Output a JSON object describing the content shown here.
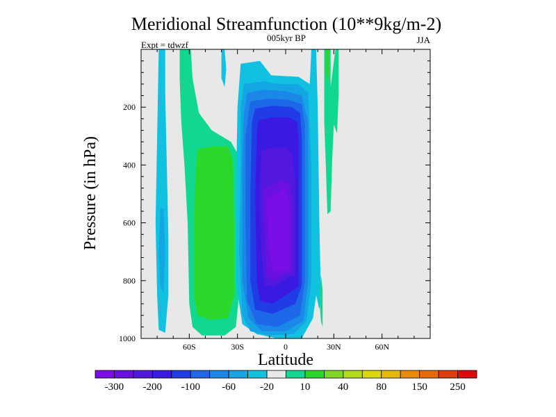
{
  "chart_data": {
    "type": "heatmap",
    "title": "Meridional Streamfunction (10**9kg/m-2)",
    "subtitle_center": "005kyr BP",
    "subtitle_left": "Expt = tdwzf",
    "subtitle_right": "JJA",
    "xlabel": "Latitude",
    "ylabel": "Pressure (in hPa)",
    "xlim": [
      -90,
      90
    ],
    "ylim": [
      1000,
      0
    ],
    "x_ticks": [
      {
        "value": -60,
        "label": "60S"
      },
      {
        "value": -30,
        "label": "30S"
      },
      {
        "value": 0,
        "label": "0"
      },
      {
        "value": 30,
        "label": "30N"
      },
      {
        "value": 60,
        "label": "60N"
      }
    ],
    "y_ticks": [
      {
        "value": 200,
        "label": "200"
      },
      {
        "value": 400,
        "label": "400"
      },
      {
        "value": 600,
        "label": "600"
      },
      {
        "value": 800,
        "label": "800"
      },
      {
        "value": 1000,
        "label": "1000"
      }
    ],
    "background_color": "#e8e8e8",
    "colorbar": {
      "labels": [
        "-300",
        "-200",
        "-100",
        "-60",
        "-20",
        "10",
        "40",
        "80",
        "150",
        "250"
      ],
      "colors": [
        "#7b0ee8",
        "#6a10e0",
        "#5218e0",
        "#3a1ae0",
        "#1f3ce6",
        "#1d68e8",
        "#1b88e8",
        "#14a6e4",
        "#11c2e0",
        "#e8e8e8",
        "#10d890",
        "#2ad82a",
        "#7fd820",
        "#b4dc18",
        "#dcd808",
        "#e8b806",
        "#e88c06",
        "#e86a06",
        "#e03c0e",
        "#e00a0a"
      ]
    },
    "regions": [
      {
        "color": "#11c2e0",
        "points": [
          [
            -79,
            0
          ],
          [
            -75,
            0
          ],
          [
            -75,
            150
          ],
          [
            -74,
            400
          ],
          [
            -73,
            650
          ],
          [
            -73,
            850
          ],
          [
            -75,
            980
          ],
          [
            -79,
            970
          ],
          [
            -80,
            850
          ],
          [
            -81,
            600
          ],
          [
            -80,
            300
          ]
        ]
      },
      {
        "color": "#14a6e4",
        "points": [
          [
            -78,
            550
          ],
          [
            -76,
            550
          ],
          [
            -75,
            700
          ],
          [
            -76,
            840
          ],
          [
            -78,
            820
          ],
          [
            -79,
            700
          ]
        ]
      },
      {
        "color": "#10d890",
        "points": [
          [
            -66,
            0
          ],
          [
            -59,
            0
          ],
          [
            -58,
            100
          ],
          [
            -54,
            220
          ],
          [
            -46,
            280
          ],
          [
            -34,
            320
          ],
          [
            -30,
            360
          ],
          [
            -29,
            600
          ],
          [
            -29,
            850
          ],
          [
            -31,
            960
          ],
          [
            -38,
            990
          ],
          [
            -52,
            990
          ],
          [
            -58,
            960
          ],
          [
            -60,
            880
          ],
          [
            -61,
            600
          ],
          [
            -63,
            400
          ],
          [
            -65,
            250
          ],
          [
            -66,
            100
          ]
        ]
      },
      {
        "color": "#2ad82a",
        "points": [
          [
            -55,
            345
          ],
          [
            -45,
            335
          ],
          [
            -36,
            335
          ],
          [
            -33,
            380
          ],
          [
            -32,
            600
          ],
          [
            -32,
            850
          ],
          [
            -36,
            930
          ],
          [
            -47,
            935
          ],
          [
            -55,
            920
          ],
          [
            -57,
            850
          ],
          [
            -57,
            600
          ],
          [
            -56,
            420
          ]
        ]
      },
      {
        "color": "#11c2e0",
        "points": [
          [
            -40,
            0
          ],
          [
            -38,
            0
          ],
          [
            -37,
            70
          ],
          [
            -38,
            130
          ],
          [
            -40,
            100
          ]
        ]
      },
      {
        "color": "#11c2e0",
        "points": [
          [
            -28,
            50
          ],
          [
            -16,
            40
          ],
          [
            -9,
            90
          ],
          [
            8,
            95
          ],
          [
            15,
            120
          ],
          [
            16,
            0
          ],
          [
            19,
            0
          ],
          [
            20,
            200
          ],
          [
            21,
            600
          ],
          [
            22,
            860
          ],
          [
            21,
            900
          ],
          [
            19,
            850
          ],
          [
            17,
            930
          ],
          [
            10,
            1000
          ],
          [
            -5,
            1000
          ],
          [
            -18,
            985
          ],
          [
            -27,
            950
          ],
          [
            -31,
            800
          ],
          [
            -31,
            500
          ],
          [
            -30,
            200
          ]
        ]
      },
      {
        "color": "#14a6e4",
        "points": [
          [
            -26,
            120
          ],
          [
            -14,
            110
          ],
          [
            -4,
            120
          ],
          [
            8,
            120
          ],
          [
            14,
            150
          ],
          [
            16,
            400
          ],
          [
            16,
            800
          ],
          [
            13,
            940
          ],
          [
            5,
            985
          ],
          [
            -10,
            990
          ],
          [
            -22,
            975
          ],
          [
            -27,
            920
          ],
          [
            -29,
            700
          ],
          [
            -28,
            400
          ],
          [
            -28,
            200
          ]
        ]
      },
      {
        "color": "#1b88e8",
        "points": [
          [
            -24,
            150
          ],
          [
            -14,
            140
          ],
          [
            0,
            145
          ],
          [
            10,
            160
          ],
          [
            14,
            250
          ],
          [
            14,
            800
          ],
          [
            11,
            940
          ],
          [
            0,
            975
          ],
          [
            -15,
            975
          ],
          [
            -23,
            930
          ],
          [
            -27,
            800
          ],
          [
            -27,
            400
          ],
          [
            -26,
            220
          ]
        ]
      },
      {
        "color": "#1d68e8",
        "points": [
          [
            -22,
            180
          ],
          [
            -10,
            170
          ],
          [
            2,
            175
          ],
          [
            10,
            190
          ],
          [
            12,
            260
          ],
          [
            12,
            800
          ],
          [
            9,
            920
          ],
          [
            -5,
            960
          ],
          [
            -18,
            950
          ],
          [
            -24,
            870
          ],
          [
            -25,
            600
          ],
          [
            -25,
            300
          ]
        ]
      },
      {
        "color": "#1f3ce6",
        "points": [
          [
            -19,
            205
          ],
          [
            -8,
            195
          ],
          [
            4,
            200
          ],
          [
            9,
            220
          ],
          [
            10,
            300
          ],
          [
            10,
            820
          ],
          [
            6,
            880
          ],
          [
            -8,
            915
          ],
          [
            -19,
            900
          ],
          [
            -22,
            800
          ],
          [
            -22,
            500
          ],
          [
            -21,
            250
          ]
        ]
      },
      {
        "color": "#3a1ae0",
        "points": [
          [
            -17,
            245
          ],
          [
            -8,
            235
          ],
          [
            2,
            235
          ],
          [
            7,
            250
          ],
          [
            8,
            300
          ],
          [
            8,
            820
          ],
          [
            3,
            840
          ],
          [
            -8,
            880
          ],
          [
            -16,
            870
          ],
          [
            -18,
            800
          ],
          [
            -19,
            500
          ],
          [
            -18,
            300
          ]
        ]
      },
      {
        "color": "#5218e0",
        "points": [
          [
            -15,
            350
          ],
          [
            -8,
            340
          ],
          [
            0,
            340
          ],
          [
            4,
            360
          ],
          [
            6,
            450
          ],
          [
            6,
            780
          ],
          [
            1,
            790
          ],
          [
            -7,
            820
          ],
          [
            -13,
            815
          ],
          [
            -15,
            700
          ],
          [
            -16,
            500
          ]
        ]
      },
      {
        "color": "#6a10e0",
        "points": [
          [
            -14,
            480
          ],
          [
            -8,
            470
          ],
          [
            -2,
            450
          ],
          [
            3,
            470
          ],
          [
            4,
            560
          ],
          [
            4,
            770
          ],
          [
            -2,
            780
          ],
          [
            -8,
            800
          ],
          [
            -12,
            780
          ],
          [
            -13,
            600
          ]
        ]
      },
      {
        "color": "#7b0ee8",
        "points": [
          [
            -12,
            520
          ],
          [
            -6,
            500
          ],
          [
            -1,
            480
          ],
          [
            2,
            520
          ],
          [
            2,
            760
          ],
          [
            -3,
            770
          ],
          [
            -8,
            760
          ],
          [
            -10,
            700
          ]
        ]
      },
      {
        "color": "#10d890",
        "points": [
          [
            24,
            0
          ],
          [
            28,
            0
          ],
          [
            28,
            130
          ],
          [
            31,
            0
          ],
          [
            33,
            0
          ],
          [
            33,
            150
          ],
          [
            32,
            290
          ],
          [
            30,
            260
          ],
          [
            29,
            380
          ],
          [
            28,
            560
          ],
          [
            26,
            570
          ],
          [
            25,
            400
          ],
          [
            24,
            250
          ]
        ]
      },
      {
        "color": "#2ad82a",
        "points": [
          [
            25,
            0
          ],
          [
            27,
            0
          ],
          [
            27,
            80
          ],
          [
            26,
            120
          ],
          [
            25,
            80
          ]
        ]
      },
      {
        "color": "#10d890",
        "points": [
          [
            22,
            780
          ],
          [
            23,
            830
          ],
          [
            23,
            960
          ],
          [
            22,
            940
          ],
          [
            21,
            860
          ]
        ]
      }
    ]
  }
}
